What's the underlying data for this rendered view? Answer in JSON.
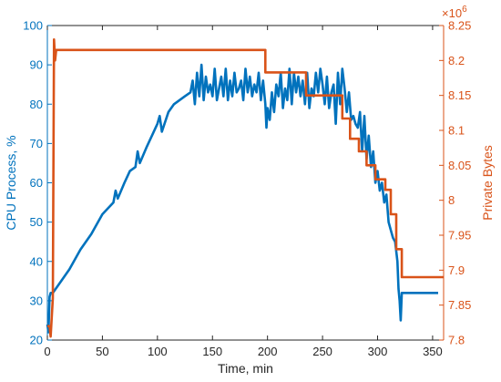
{
  "chart_data": {
    "type": "line",
    "xlabel": "Time, min",
    "ylabel_left": "CPU Process, %",
    "ylabel_right": "Private Bytes",
    "right_exponent": "×10",
    "right_exponent_power": "6",
    "xlim": [
      0,
      360
    ],
    "ylim_left": [
      20,
      100
    ],
    "ylim_right": [
      7.8,
      8.25
    ],
    "xticks": [
      0,
      50,
      100,
      150,
      200,
      250,
      300,
      350
    ],
    "yticks_left": [
      20,
      30,
      40,
      50,
      60,
      70,
      80,
      90,
      100
    ],
    "yticks_right": [
      7.8,
      7.85,
      7.9,
      7.95,
      8,
      8.05,
      8.1,
      8.15,
      8.2,
      8.25
    ],
    "ytick_labels_right": [
      "7.8",
      "7.85",
      "7.9",
      "7.95",
      "8",
      "8.05",
      "8.1",
      "8.15",
      "8.2",
      "8.25"
    ],
    "grid": false,
    "colors": {
      "cpu": "#0072BD",
      "bytes": "#D95319",
      "axis": "#262626"
    },
    "series": [
      {
        "axis": "left",
        "x": [
          0,
          1,
          2,
          3,
          5,
          10,
          20,
          30,
          40,
          50,
          60,
          62,
          64,
          70,
          75,
          80,
          82,
          84,
          90,
          95,
          100,
          102,
          104,
          110,
          115,
          120,
          125,
          130,
          132,
          134,
          136,
          138,
          140,
          142,
          144,
          146,
          148,
          150,
          152,
          154,
          156,
          158,
          160,
          162,
          164,
          166,
          168,
          170,
          172,
          174,
          176,
          178,
          180,
          182,
          184,
          186,
          188,
          190,
          192,
          194,
          196,
          198,
          199,
          200,
          202,
          204,
          206,
          208,
          210,
          212,
          214,
          216,
          218,
          220,
          222,
          224,
          226,
          228,
          230,
          232,
          234,
          236,
          238,
          240,
          242,
          244,
          246,
          248,
          250,
          252,
          254,
          256,
          258,
          260,
          262,
          264,
          266,
          268,
          270,
          272,
          274,
          276,
          278,
          280,
          282,
          284,
          286,
          288,
          290,
          292,
          294,
          296,
          298,
          300,
          302,
          304,
          306,
          308,
          310,
          312,
          314,
          316,
          318,
          319,
          320,
          321,
          322,
          324,
          330,
          340,
          350,
          355
        ],
        "y": [
          24,
          22,
          31,
          32,
          32,
          34,
          38,
          43,
          47,
          52,
          55,
          58,
          56,
          60,
          63,
          64,
          68,
          65,
          69,
          72,
          75,
          77,
          73,
          78,
          80,
          81,
          82,
          83,
          86,
          80,
          88,
          82,
          90,
          81,
          87,
          83,
          85,
          82,
          89,
          81,
          84,
          87,
          82,
          89,
          81,
          86,
          82,
          88,
          83,
          84,
          86,
          81,
          89,
          83,
          87,
          82,
          85,
          83,
          88,
          81,
          86,
          80,
          74,
          79,
          76,
          83,
          78,
          85,
          82,
          88,
          79,
          84,
          81,
          89,
          80,
          88,
          83,
          87,
          82,
          86,
          80,
          88,
          79,
          84,
          82,
          88,
          83,
          89,
          85,
          80,
          87,
          79,
          83,
          85,
          75,
          88,
          80,
          89,
          84,
          78,
          83,
          76,
          77,
          75,
          74,
          78,
          68,
          77,
          66,
          72,
          64,
          68,
          60,
          63,
          58,
          60,
          55,
          57,
          50,
          48,
          46,
          45,
          40,
          33,
          30,
          25,
          32,
          32,
          32,
          32,
          32,
          32
        ]
      },
      {
        "axis": "right",
        "x": [
          0,
          2,
          3,
          5,
          6,
          7,
          8,
          198,
          198,
          235,
          235,
          268,
          268,
          275,
          275,
          283,
          283,
          290,
          290,
          298,
          298,
          307,
          307,
          312,
          312,
          317,
          317,
          322,
          322,
          360
        ],
        "y": [
          7.82,
          7.82,
          7.805,
          7.86,
          8.23,
          8.2,
          8.215,
          8.215,
          8.183,
          8.183,
          8.15,
          8.15,
          8.117,
          8.117,
          8.088,
          8.088,
          8.07,
          8.07,
          8.05,
          8.05,
          8.03,
          8.03,
          8.015,
          8.015,
          7.98,
          7.98,
          7.93,
          7.93,
          7.89,
          7.89
        ]
      }
    ]
  }
}
